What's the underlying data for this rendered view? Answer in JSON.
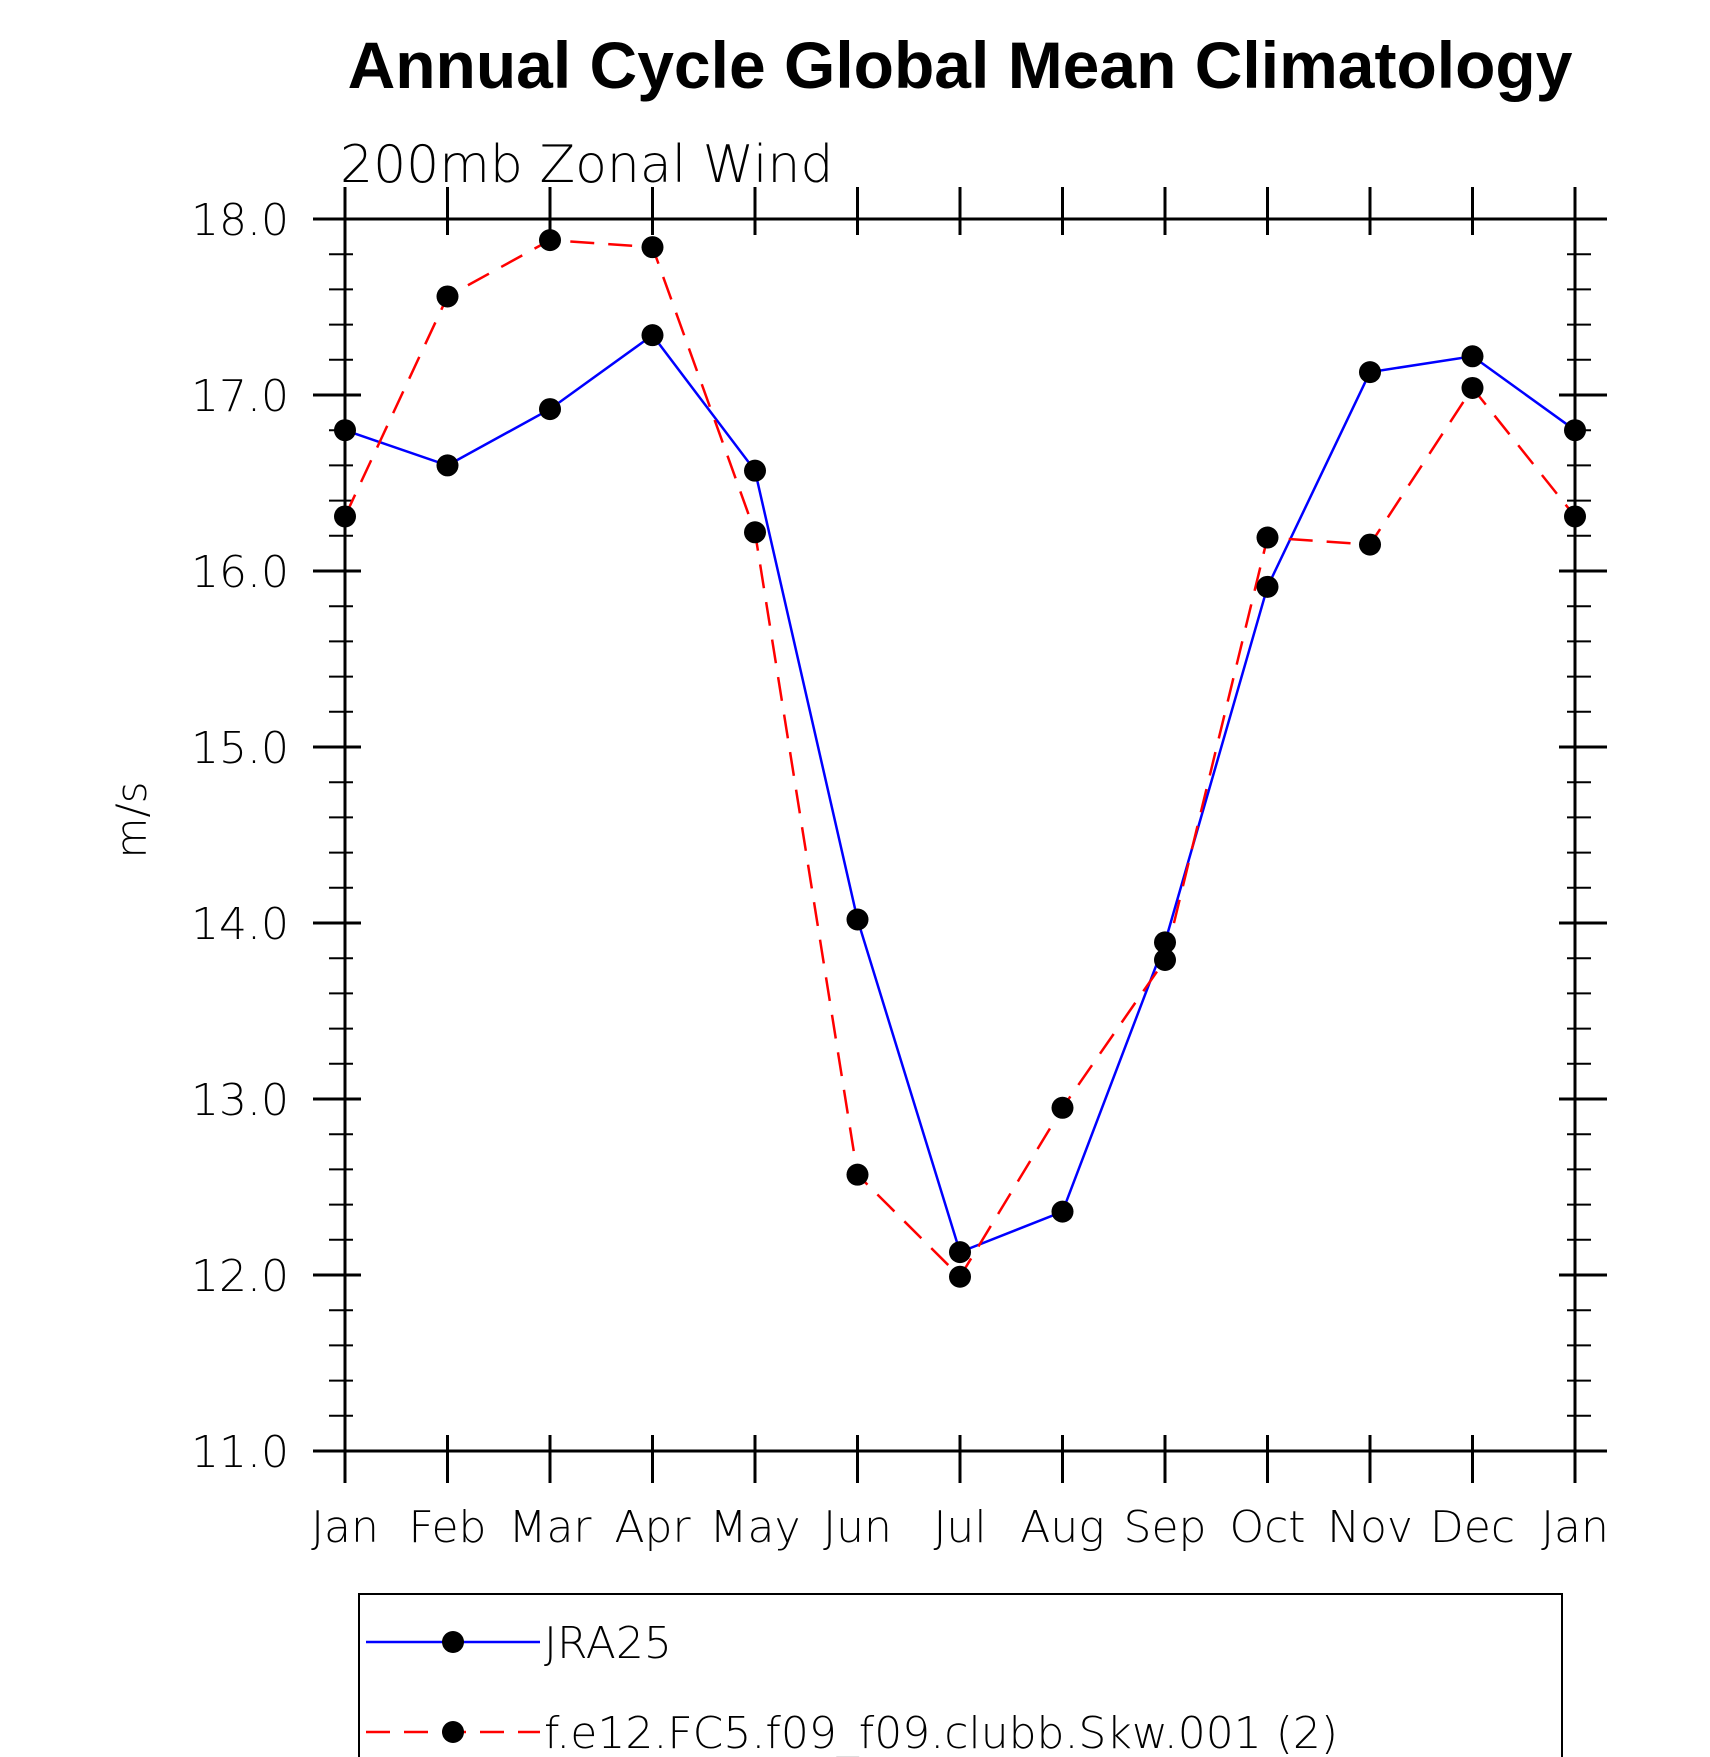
{
  "chart_data": {
    "type": "line",
    "title": "Annual Cycle Global Mean Climatology",
    "subtitle": "200mb Zonal Wind",
    "xlabel": "",
    "ylabel": "m/s",
    "categories": [
      "Jan",
      "Feb",
      "Mar",
      "Apr",
      "May",
      "Jun",
      "Jul",
      "Aug",
      "Sep",
      "Oct",
      "Nov",
      "Dec",
      "Jan"
    ],
    "ylim": [
      11.0,
      18.0
    ],
    "yticks": [
      "11.0",
      "12.0",
      "13.0",
      "14.0",
      "15.0",
      "16.0",
      "17.0",
      "18.0"
    ],
    "grid": false,
    "legend_position": "bottom",
    "series": [
      {
        "name": "JRA25",
        "color": "#0000ff",
        "dash": "solid",
        "values": [
          16.8,
          16.6,
          16.92,
          17.34,
          16.57,
          14.02,
          12.13,
          12.36,
          13.89,
          15.91,
          17.13,
          17.22,
          16.8
        ]
      },
      {
        "name": "f.e12.FC5.f09_f09.clubb.Skw.001 (2)",
        "color": "#ff0000",
        "dash": "dashed",
        "values": [
          16.31,
          17.56,
          17.88,
          17.84,
          16.22,
          12.57,
          11.99,
          12.95,
          13.79,
          16.19,
          16.15,
          17.04,
          16.31
        ]
      }
    ]
  }
}
